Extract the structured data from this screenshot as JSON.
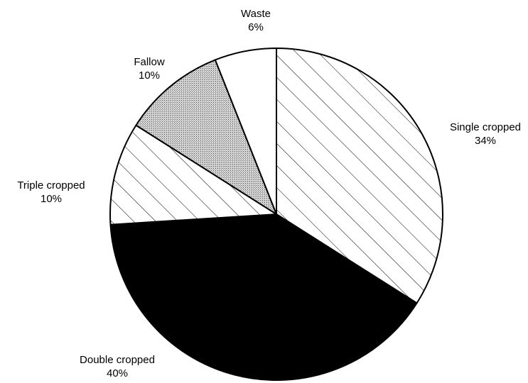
{
  "chart_data": {
    "type": "pie",
    "categories": [
      "Single cropped",
      "Double cropped",
      "Triple cropped",
      "Fallow",
      "Waste"
    ],
    "values": [
      34,
      40,
      10,
      10,
      6
    ],
    "value_labels": [
      "34%",
      "40%",
      "10%",
      "10%",
      "6%"
    ],
    "colors": [
      "#ffffff",
      "#000000",
      "#ffffff",
      "#c8c8c8",
      "#ffffff"
    ],
    "patterns": [
      "hatch",
      "solid",
      "hatch",
      "dots",
      "none"
    ]
  }
}
